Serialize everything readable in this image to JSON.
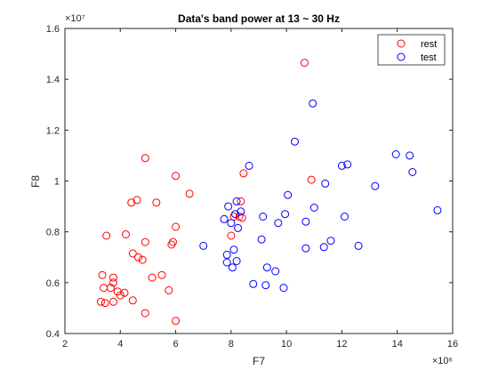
{
  "chart_data": {
    "type": "scatter",
    "title": "Data's band power at 13 ~ 30 Hz",
    "xlabel": "F7",
    "ylabel": "F8",
    "x_exponent_label": "×10⁶",
    "y_exponent_label": "×10⁷",
    "xlim": [
      2,
      16
    ],
    "ylim": [
      0.4,
      1.6
    ],
    "x_ticks": [
      2,
      4,
      6,
      8,
      10,
      12,
      14,
      16
    ],
    "x_tick_labels": [
      "2",
      "4",
      "6",
      "8",
      "10",
      "12",
      "14",
      "16"
    ],
    "y_ticks": [
      0.4,
      0.6,
      0.8,
      1.0,
      1.2,
      1.4,
      1.6
    ],
    "y_tick_labels": [
      "0.4",
      "0.6",
      "0.8",
      "1",
      "1.2",
      "1.4",
      "1.6"
    ],
    "grid": false,
    "legend_location": "top-right",
    "series": [
      {
        "name": "rest",
        "color": "#ff0000",
        "marker": "circle",
        "points": [
          [
            4.9,
            1.09
          ],
          [
            6.0,
            1.02
          ],
          [
            6.5,
            0.95
          ],
          [
            4.6,
            0.925
          ],
          [
            4.4,
            0.915
          ],
          [
            5.3,
            0.915
          ],
          [
            3.5,
            0.785
          ],
          [
            4.2,
            0.79
          ],
          [
            4.9,
            0.76
          ],
          [
            5.85,
            0.75
          ],
          [
            5.9,
            0.76
          ],
          [
            6.0,
            0.82
          ],
          [
            4.45,
            0.715
          ],
          [
            4.65,
            0.7
          ],
          [
            4.8,
            0.69
          ],
          [
            3.35,
            0.63
          ],
          [
            3.75,
            0.62
          ],
          [
            3.75,
            0.6
          ],
          [
            3.4,
            0.58
          ],
          [
            3.65,
            0.58
          ],
          [
            3.9,
            0.565
          ],
          [
            4.0,
            0.55
          ],
          [
            4.15,
            0.56
          ],
          [
            3.3,
            0.525
          ],
          [
            3.45,
            0.52
          ],
          [
            3.75,
            0.525
          ],
          [
            4.45,
            0.53
          ],
          [
            5.15,
            0.62
          ],
          [
            5.5,
            0.63
          ],
          [
            5.75,
            0.57
          ],
          [
            4.9,
            0.48
          ],
          [
            6.0,
            0.45
          ],
          [
            8.45,
            1.03
          ],
          [
            8.35,
            0.92
          ],
          [
            8.1,
            0.86
          ],
          [
            8.3,
            0.86
          ],
          [
            8.4,
            0.855
          ],
          [
            8.0,
            0.785
          ],
          [
            10.65,
            1.465
          ],
          [
            10.9,
            1.005
          ]
        ]
      },
      {
        "name": "test",
        "color": "#0000ff",
        "marker": "circle",
        "points": [
          [
            10.95,
            1.305
          ],
          [
            10.3,
            1.155
          ],
          [
            13.95,
            1.105
          ],
          [
            14.45,
            1.1
          ],
          [
            14.55,
            1.035
          ],
          [
            12.0,
            1.06
          ],
          [
            12.2,
            1.065
          ],
          [
            11.4,
            0.99
          ],
          [
            13.2,
            0.98
          ],
          [
            10.05,
            0.945
          ],
          [
            11.0,
            0.895
          ],
          [
            8.65,
            1.06
          ],
          [
            8.2,
            0.92
          ],
          [
            7.9,
            0.9
          ],
          [
            8.35,
            0.88
          ],
          [
            8.15,
            0.87
          ],
          [
            7.75,
            0.85
          ],
          [
            9.15,
            0.86
          ],
          [
            9.95,
            0.87
          ],
          [
            9.7,
            0.835
          ],
          [
            10.7,
            0.84
          ],
          [
            12.1,
            0.86
          ],
          [
            15.45,
            0.885
          ],
          [
            8.25,
            0.815
          ],
          [
            8.0,
            0.835
          ],
          [
            7.0,
            0.745
          ],
          [
            8.1,
            0.73
          ],
          [
            7.85,
            0.71
          ],
          [
            7.85,
            0.68
          ],
          [
            8.05,
            0.66
          ],
          [
            8.2,
            0.685
          ],
          [
            9.1,
            0.77
          ],
          [
            9.3,
            0.66
          ],
          [
            9.6,
            0.645
          ],
          [
            8.8,
            0.595
          ],
          [
            9.25,
            0.59
          ],
          [
            9.9,
            0.58
          ],
          [
            10.7,
            0.735
          ],
          [
            11.35,
            0.74
          ],
          [
            11.6,
            0.765
          ],
          [
            12.6,
            0.745
          ]
        ]
      }
    ]
  }
}
